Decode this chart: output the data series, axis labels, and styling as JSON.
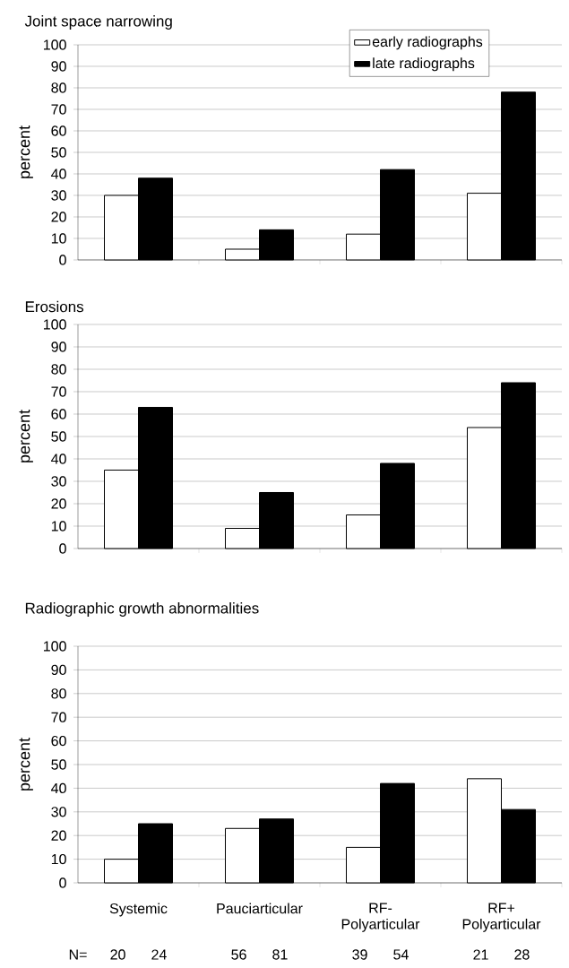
{
  "chart_data": [
    {
      "type": "bar",
      "title": "Joint space narrowing",
      "ylabel": "percent",
      "categories": [
        null,
        null,
        null,
        null
      ],
      "series": [
        {
          "name": "early radiographs",
          "color": "#ffffff",
          "values": [
            30,
            5,
            12,
            31
          ]
        },
        {
          "name": "late radiographs",
          "color": "#000000",
          "values": [
            38,
            14,
            42,
            78
          ]
        }
      ],
      "ylim": [
        0,
        100
      ],
      "yticks": [
        0,
        10,
        20,
        30,
        40,
        50,
        60,
        70,
        80,
        90,
        100
      ],
      "grid": "y",
      "legend": "top right",
      "tick_labels": "y"
    },
    {
      "type": "bar",
      "title": "Erosions",
      "ylabel": "percent",
      "categories": [
        null,
        null,
        null,
        null
      ],
      "series": [
        {
          "color": "#ffffff",
          "values": [
            35,
            9,
            15,
            54
          ]
        },
        {
          "color": "#000000",
          "values": [
            63,
            25,
            38,
            74
          ]
        }
      ],
      "ylim": [
        0,
        100
      ],
      "yticks": [
        0,
        10,
        20,
        30,
        40,
        50,
        60,
        70,
        80,
        90,
        100
      ],
      "grid": "y",
      "tick_labels": "y"
    },
    {
      "type": "bar",
      "title": "Radiographic growth abnormalities",
      "ylabel": "percent",
      "categories": [
        "Systemic",
        "Pauciarticular",
        "RF- Polyarticular",
        "RF+ Polyarticular"
      ],
      "series": [
        {
          "color": "#ffffff",
          "values": [
            10,
            23,
            15,
            44
          ]
        },
        {
          "color": "#000000",
          "values": [
            25,
            27,
            42,
            31
          ]
        }
      ],
      "ylim": [
        0,
        100
      ],
      "yticks": [
        0,
        10,
        20,
        30,
        40,
        50,
        60,
        70,
        80,
        90,
        100
      ],
      "grid": "y",
      "annotations": [
        "N=",
        "20",
        "24",
        "56",
        "81",
        "39",
        "54",
        "21",
        "28"
      ]
    }
  ]
}
